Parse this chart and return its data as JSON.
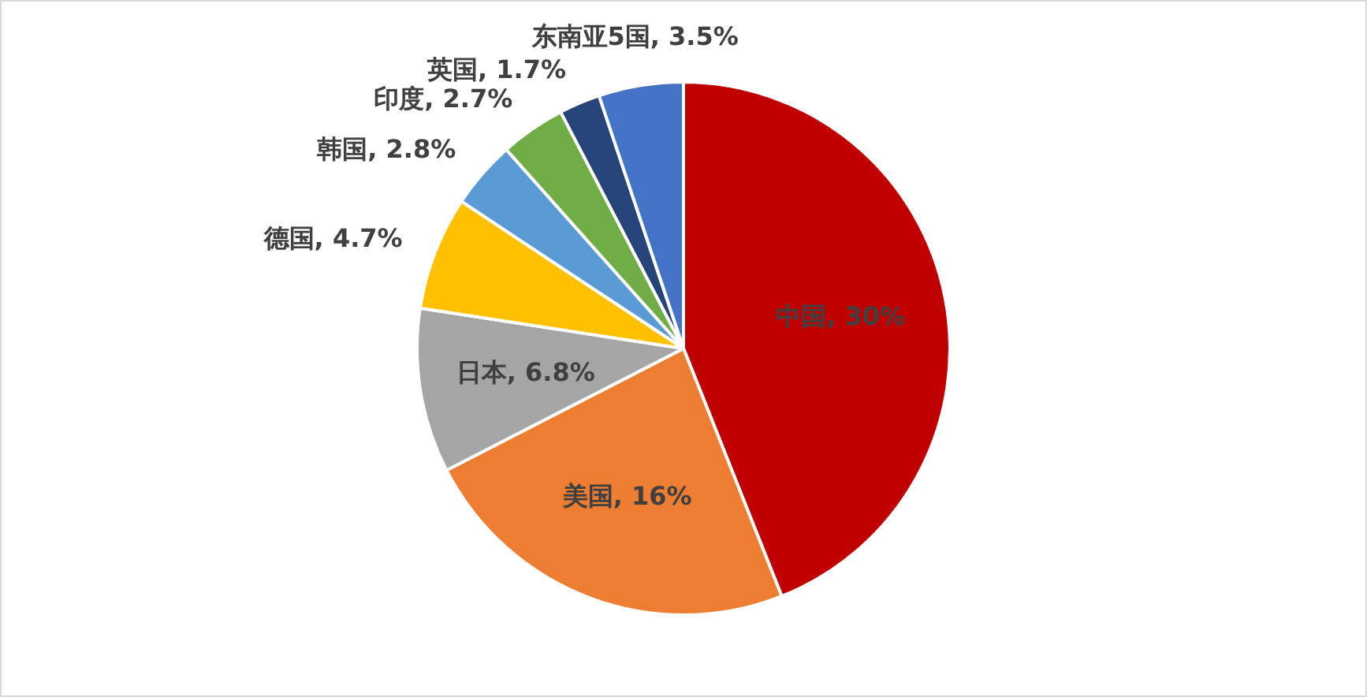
{
  "chart_data": {
    "type": "pie",
    "categories": [
      "中国",
      "美国",
      "日本",
      "德国",
      "韩国",
      "印度",
      "英国",
      "东南亚5国"
    ],
    "values": [
      30,
      16,
      6.8,
      4.7,
      2.8,
      2.7,
      1.7,
      3.5
    ],
    "value_labels": [
      "30%",
      "16%",
      "6.8%",
      "4.7%",
      "2.8%",
      "2.7%",
      "1.7%",
      "3.5%"
    ],
    "colors": [
      "#c00000",
      "#ed7d31",
      "#a5a5a5",
      "#ffc000",
      "#5b9bd5",
      "#70ad47",
      "#264478",
      "#4472c4"
    ],
    "legend": false
  }
}
